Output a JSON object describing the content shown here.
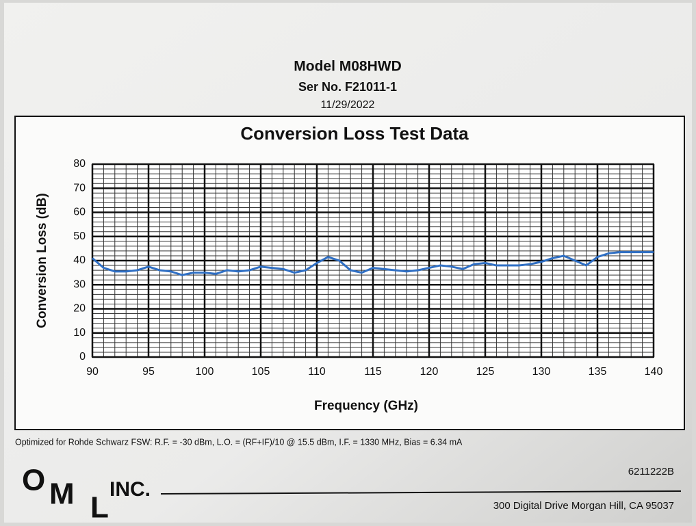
{
  "header": {
    "model": "Model M08HWD",
    "serial": "Ser No. F21011-1",
    "date": "11/29/2022"
  },
  "chart_data": {
    "type": "line",
    "title": "Conversion Loss Test Data",
    "x_label": "Frequency (GHz)",
    "y_label": "Conversion Loss (dB)",
    "x": [
      90,
      91,
      92,
      93,
      94,
      95,
      96,
      97,
      98,
      99,
      100,
      101,
      102,
      103,
      104,
      105,
      106,
      107,
      108,
      109,
      110,
      111,
      112,
      113,
      114,
      115,
      116,
      117,
      118,
      119,
      120,
      121,
      122,
      123,
      124,
      125,
      126,
      127,
      128,
      129,
      130,
      131,
      132,
      133,
      134,
      135,
      136,
      137,
      138,
      139,
      140
    ],
    "series": [
      {
        "name": "Conversion Loss",
        "color": "#2f6fc4",
        "values": [
          41,
          37,
          35.5,
          35.5,
          36,
          37.5,
          36,
          35.5,
          34,
          35,
          35,
          34.5,
          36,
          35.5,
          36,
          37.5,
          37,
          36.5,
          35,
          36,
          39,
          41.5,
          40,
          36,
          35,
          37,
          36.5,
          36,
          35.5,
          36,
          37,
          38,
          37.5,
          36.5,
          38.5,
          39,
          38,
          38,
          38,
          38.5,
          39.5,
          41,
          42,
          40,
          38,
          41.5,
          43,
          43.5,
          43.5,
          43.5,
          43.5
        ]
      }
    ],
    "xlim": [
      90,
      140
    ],
    "xticks": [
      90,
      95,
      100,
      105,
      110,
      115,
      120,
      125,
      130,
      135,
      140
    ],
    "ylim": [
      0,
      80
    ],
    "yticks": [
      0,
      10,
      20,
      30,
      40,
      50,
      60,
      70,
      80
    ],
    "grid": true,
    "minor_divisions": 5
  },
  "footer": {
    "note": "Optimized for Rohde Schwarz FSW:  R.F. = -30 dBm, L.O. = (RF+IF)/10 @ 15.5 dBm, I.F. = 1330 MHz, Bias = 6.34 mA",
    "logo_o": "O",
    "logo_m": "M",
    "logo_l": "L",
    "logo_inc": "INC.",
    "part": "6211222B",
    "address": "300 Digital Drive Morgan Hill,  CA  95037"
  }
}
